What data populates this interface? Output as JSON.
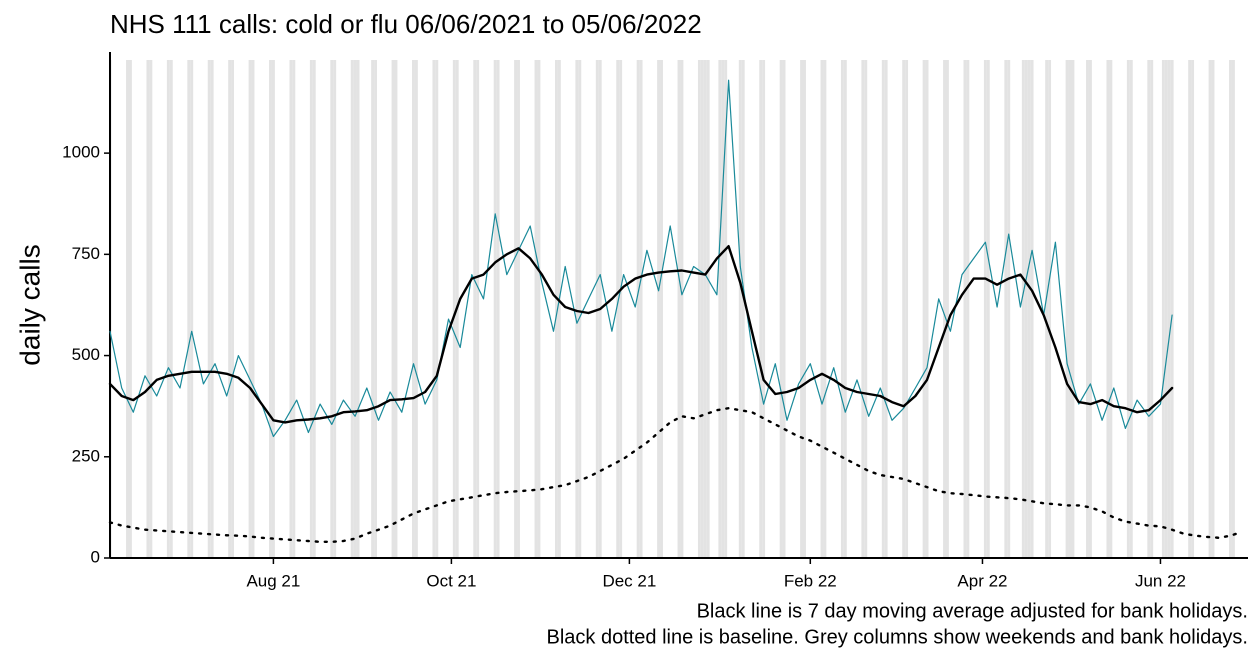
{
  "chart_data": {
    "type": "line",
    "title": "NHS 111 calls: cold or flu 06/06/2021 to 05/06/2022",
    "y_label": "daily calls",
    "notes": [
      "Black line is 7 day moving average adjusted for bank holidays.",
      "Black dotted line is baseline. Grey columns show weekends and bank holidays."
    ],
    "xlim": [
      "2021-06-06",
      "2022-07-01"
    ],
    "xticks": [
      {
        "value": "2021-08-01",
        "label": "Aug 21"
      },
      {
        "value": "2021-10-01",
        "label": "Oct 21"
      },
      {
        "value": "2021-12-01",
        "label": "Dec 21"
      },
      {
        "value": "2022-02-01",
        "label": "Feb 22"
      },
      {
        "value": "2022-04-01",
        "label": "Apr 22"
      },
      {
        "value": "2022-06-01",
        "label": "Jun 22"
      }
    ],
    "ylim": [
      0,
      1230
    ],
    "yticks": [
      0,
      250,
      500,
      750,
      1000
    ],
    "weekend_shading": true,
    "shade_color": "#e3e3e3",
    "bank_holidays": [
      "2021-08-30",
      "2021-12-27",
      "2021-12-28",
      "2022-01-03",
      "2022-04-15",
      "2022-04-18",
      "2022-05-02",
      "2022-06-02",
      "2022-06-03"
    ],
    "x": [
      "2021-06-06",
      "2021-06-10",
      "2021-06-14",
      "2021-06-18",
      "2021-06-22",
      "2021-06-26",
      "2021-06-30",
      "2021-07-04",
      "2021-07-08",
      "2021-07-12",
      "2021-07-16",
      "2021-07-20",
      "2021-07-24",
      "2021-07-28",
      "2021-08-01",
      "2021-08-05",
      "2021-08-09",
      "2021-08-13",
      "2021-08-17",
      "2021-08-21",
      "2021-08-25",
      "2021-08-29",
      "2021-09-02",
      "2021-09-06",
      "2021-09-10",
      "2021-09-14",
      "2021-09-18",
      "2021-09-22",
      "2021-09-26",
      "2021-09-30",
      "2021-10-04",
      "2021-10-08",
      "2021-10-12",
      "2021-10-16",
      "2021-10-20",
      "2021-10-24",
      "2021-10-28",
      "2021-11-01",
      "2021-11-05",
      "2021-11-09",
      "2021-11-13",
      "2021-11-17",
      "2021-11-21",
      "2021-11-25",
      "2021-11-29",
      "2021-12-03",
      "2021-12-07",
      "2021-12-11",
      "2021-12-15",
      "2021-12-19",
      "2021-12-23",
      "2021-12-27",
      "2021-12-31",
      "2022-01-04",
      "2022-01-08",
      "2022-01-12",
      "2022-01-16",
      "2022-01-20",
      "2022-01-24",
      "2022-01-28",
      "2022-02-01",
      "2022-02-05",
      "2022-02-09",
      "2022-02-13",
      "2022-02-17",
      "2022-02-21",
      "2022-02-25",
      "2022-03-01",
      "2022-03-05",
      "2022-03-09",
      "2022-03-13",
      "2022-03-17",
      "2022-03-21",
      "2022-03-25",
      "2022-03-29",
      "2022-04-02",
      "2022-04-06",
      "2022-04-10",
      "2022-04-14",
      "2022-04-18",
      "2022-04-22",
      "2022-04-26",
      "2022-04-30",
      "2022-05-04",
      "2022-05-08",
      "2022-05-12",
      "2022-05-16",
      "2022-05-20",
      "2022-05-24",
      "2022-05-28",
      "2022-06-01",
      "2022-06-05",
      "2022-06-09",
      "2022-06-13",
      "2022-06-17",
      "2022-06-21",
      "2022-06-25",
      "2022-06-29"
    ],
    "series": [
      {
        "color": "#1a8a9a",
        "width": 1.2,
        "dash": "none",
        "values": [
          560,
          420,
          360,
          450,
          400,
          470,
          420,
          560,
          430,
          480,
          400,
          500,
          440,
          380,
          300,
          340,
          390,
          310,
          380,
          330,
          390,
          350,
          420,
          340,
          410,
          360,
          480,
          380,
          440,
          590,
          520,
          700,
          640,
          850,
          700,
          760,
          820,
          680,
          560,
          720,
          580,
          640,
          700,
          560,
          700,
          620,
          760,
          660,
          820,
          650,
          720,
          700,
          650,
          1180,
          720,
          520,
          380,
          480,
          340,
          430,
          480,
          380,
          470,
          360,
          440,
          350,
          420,
          340,
          370,
          420,
          470,
          640,
          560,
          700,
          740,
          780,
          620,
          800,
          620,
          760,
          600,
          780,
          480,
          380,
          430,
          340,
          420,
          320,
          390,
          350,
          380,
          600,
          null,
          null,
          null,
          null,
          null,
          null
        ]
      },
      {
        "color": "#000000",
        "width": 2.4,
        "dash": "none",
        "values": [
          430,
          400,
          390,
          410,
          440,
          450,
          455,
          460,
          460,
          460,
          455,
          445,
          420,
          380,
          340,
          335,
          340,
          342,
          345,
          350,
          360,
          362,
          365,
          375,
          390,
          392,
          395,
          410,
          450,
          560,
          640,
          690,
          700,
          730,
          750,
          765,
          740,
          700,
          650,
          620,
          610,
          605,
          615,
          640,
          670,
          690,
          700,
          705,
          708,
          710,
          705,
          700,
          740,
          770,
          680,
          560,
          440,
          405,
          410,
          420,
          440,
          455,
          440,
          420,
          410,
          405,
          400,
          385,
          375,
          400,
          440,
          520,
          600,
          650,
          690,
          690,
          675,
          690,
          700,
          660,
          600,
          520,
          430,
          385,
          380,
          390,
          375,
          370,
          360,
          365,
          390,
          420,
          null,
          null,
          null,
          null,
          null,
          null
        ]
      },
      {
        "color": "#000000",
        "width": 2.4,
        "dash": "2 7",
        "values": [
          88,
          80,
          75,
          70,
          68,
          66,
          64,
          62,
          60,
          58,
          56,
          55,
          53,
          50,
          48,
          46,
          44,
          42,
          40,
          40,
          42,
          48,
          60,
          70,
          80,
          95,
          110,
          120,
          130,
          140,
          145,
          150,
          155,
          160,
          163,
          165,
          167,
          170,
          175,
          180,
          190,
          200,
          215,
          230,
          245,
          265,
          285,
          310,
          335,
          350,
          345,
          355,
          365,
          370,
          365,
          360,
          345,
          330,
          315,
          300,
          290,
          275,
          260,
          245,
          230,
          215,
          205,
          200,
          195,
          185,
          175,
          165,
          160,
          158,
          155,
          152,
          150,
          148,
          145,
          140,
          135,
          133,
          130,
          130,
          125,
          115,
          100,
          90,
          85,
          80,
          78,
          70,
          60,
          55,
          52,
          50,
          55,
          65
        ]
      }
    ]
  }
}
